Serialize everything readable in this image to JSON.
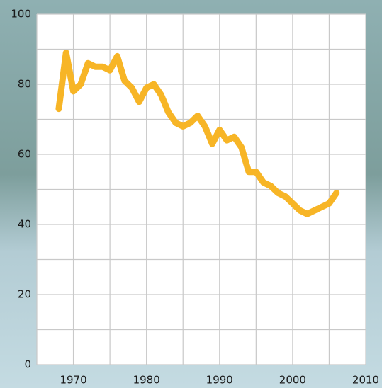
{
  "chart_data": {
    "type": "line",
    "x": [
      1968,
      1969,
      1970,
      1971,
      1972,
      1973,
      1974,
      1975,
      1976,
      1977,
      1978,
      1979,
      1980,
      1981,
      1982,
      1983,
      1984,
      1985,
      1986,
      1987,
      1988,
      1989,
      1990,
      1991,
      1992,
      1993,
      1994,
      1995,
      1996,
      1997,
      1998,
      1999,
      2000,
      2001,
      2002,
      2003,
      2004,
      2005,
      2006
    ],
    "values": [
      73,
      89,
      78,
      80,
      86,
      85,
      85,
      84,
      88,
      81,
      79,
      75,
      79,
      80,
      77,
      72,
      69,
      68,
      69,
      71,
      68,
      63,
      67,
      64,
      65,
      62,
      55,
      55,
      52,
      51,
      49,
      48,
      46,
      44,
      43,
      44,
      45,
      46,
      49
    ],
    "color": "#f7b526",
    "xlim": [
      1965,
      2010
    ],
    "xticks": [
      1970,
      1980,
      1990,
      2000,
      2010
    ],
    "ylim": [
      0,
      100
    ],
    "yticks": [
      0,
      20,
      40,
      60,
      80,
      100
    ],
    "grid": true
  }
}
